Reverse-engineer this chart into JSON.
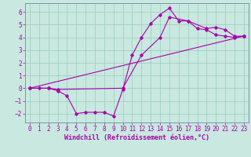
{
  "title": "",
  "xlabel": "Windchill (Refroidissement éolien,°C)",
  "xlim": [
    -0.5,
    23.5
  ],
  "ylim": [
    -2.7,
    6.7
  ],
  "xticks": [
    0,
    1,
    2,
    3,
    4,
    5,
    6,
    7,
    8,
    9,
    10,
    11,
    12,
    13,
    14,
    15,
    16,
    17,
    18,
    19,
    20,
    21,
    22,
    23
  ],
  "yticks": [
    -2,
    -1,
    0,
    1,
    2,
    3,
    4,
    5,
    6
  ],
  "bg_color": "#c8e8e0",
  "line_color": "#aa00aa",
  "grid_color": "#99ccbb",
  "spine_color": "#7799aa",
  "curve1_x": [
    0,
    1,
    2,
    3,
    4,
    5,
    6,
    7,
    8,
    9,
    10,
    11,
    12,
    13,
    14,
    15,
    16,
    17,
    18,
    19,
    20,
    21,
    22,
    23
  ],
  "curve1_y": [
    0.0,
    0.0,
    0.0,
    -0.2,
    -0.6,
    -2.0,
    -1.9,
    -1.9,
    -1.9,
    -2.2,
    -0.1,
    2.6,
    4.0,
    5.1,
    5.8,
    6.3,
    5.3,
    5.3,
    4.7,
    4.6,
    4.2,
    4.1,
    4.0,
    4.1
  ],
  "curve2_x": [
    0,
    2,
    3,
    10,
    12,
    14,
    15,
    17,
    19,
    20,
    21,
    22,
    23
  ],
  "curve2_y": [
    0.0,
    0.0,
    -0.1,
    0.0,
    2.6,
    4.0,
    5.6,
    5.3,
    4.7,
    4.8,
    4.6,
    4.1,
    4.1
  ],
  "curve3_x": [
    0,
    23
  ],
  "curve3_y": [
    0.0,
    4.1
  ],
  "tick_fontsize": 5.5,
  "xlabel_fontsize": 6.0
}
